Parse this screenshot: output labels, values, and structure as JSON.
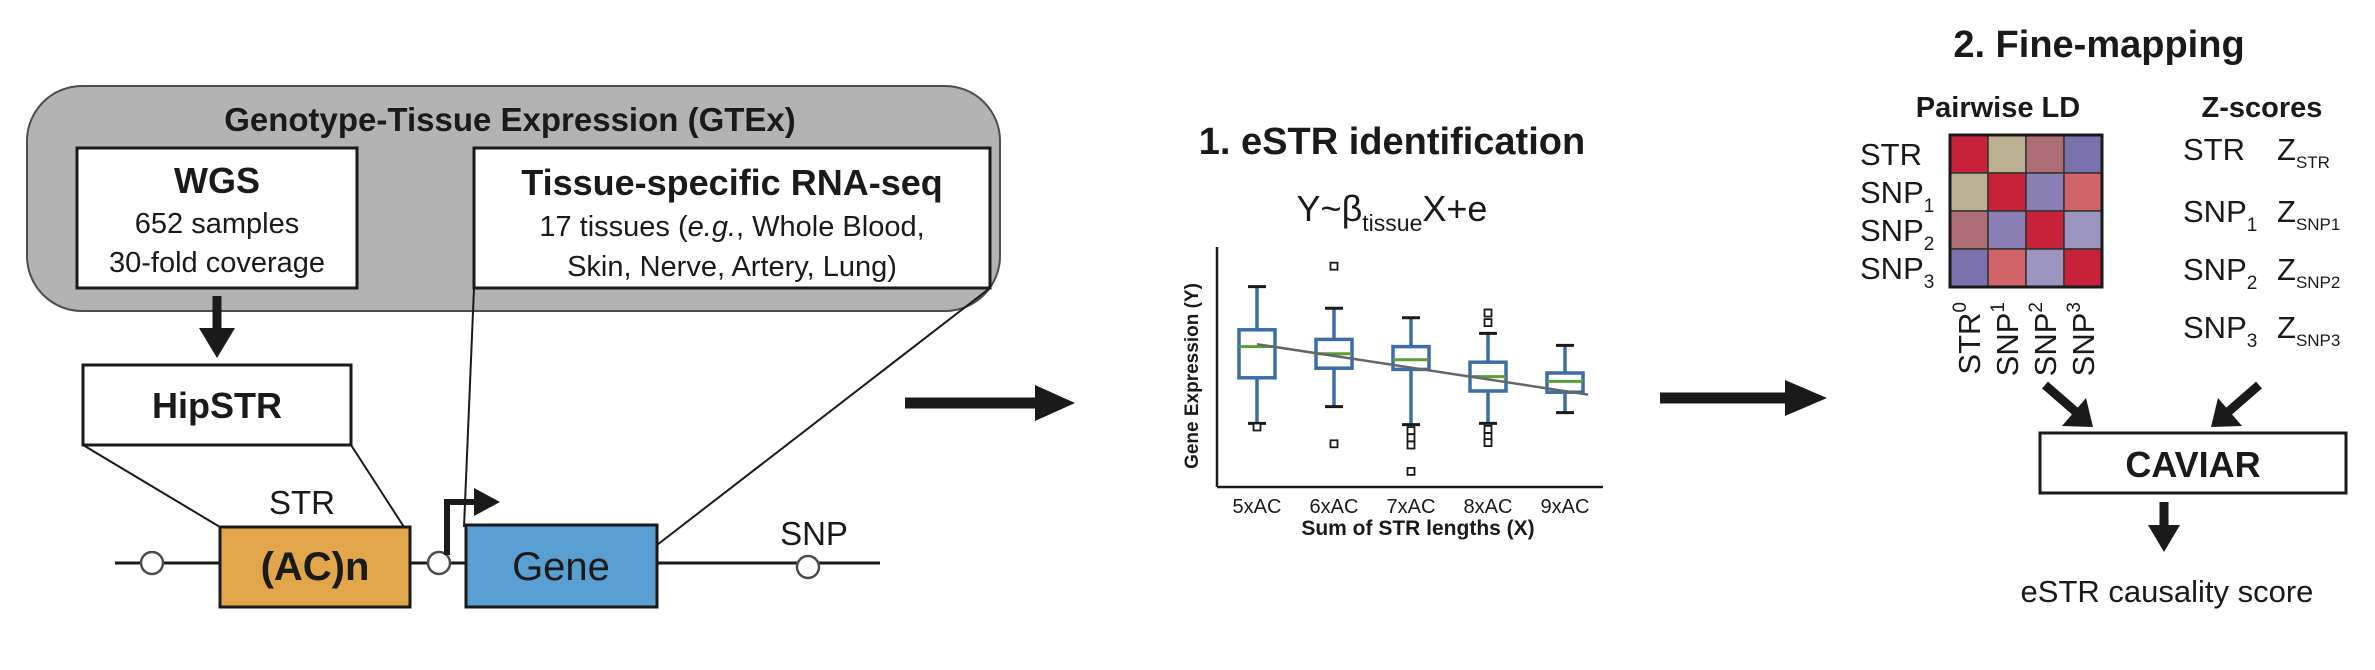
{
  "gtex": {
    "title": "Genotype-Tissue Expression (GTEx)",
    "wgs": {
      "title": "WGS",
      "line1": "652 samples",
      "line2": "30-fold coverage"
    },
    "rnaseq": {
      "title": "Tissue-specific RNA-seq",
      "line1_prefix": "17 tissues (",
      "line1_italic": "e.g.",
      "line1_suffix": ", Whole Blood,",
      "line2": "Skin, Nerve, Artery, Lung)"
    }
  },
  "hipstr": {
    "label": "HipSTR"
  },
  "locus": {
    "str_label": "STR",
    "str_box": "(AC)n",
    "gene_box": "Gene",
    "snp_label": "SNP"
  },
  "colors": {
    "gtex_bg": "#b3b3b3",
    "str_box": "#e2a64a",
    "gene_box": "#5a9fd2",
    "box_stroke": "#3a6ea5",
    "median": "#5a9e3a"
  },
  "estr": {
    "title": "1. eSTR identification",
    "formula": {
      "y": "Y~β",
      "sub": "tissue",
      "rest": "X+e"
    },
    "chart_data": {
      "type": "box",
      "categories": [
        "5xAC",
        "6xAC",
        "7xAC",
        "8xAC",
        "9xAC"
      ],
      "xlabel": "Sum of STR lengths (X)",
      "ylabel": "Gene Expression (Y)",
      "ylim": [
        0,
        10
      ],
      "boxes": [
        {
          "whisker_low": 2.65,
          "q1": 4.55,
          "median": 5.85,
          "q3": 6.55,
          "whisker_high": 8.35,
          "outliers": [
            2.5
          ]
        },
        {
          "whisker_low": 3.35,
          "q1": 4.95,
          "median": 5.55,
          "q3": 6.15,
          "whisker_high": 7.45,
          "outliers": [
            9.2,
            1.8
          ]
        },
        {
          "whisker_low": 2.6,
          "q1": 4.9,
          "median": 5.3,
          "q3": 5.85,
          "whisker_high": 7.05,
          "outliers": [
            2.35,
            2.05,
            1.75,
            0.65
          ]
        },
        {
          "whisker_low": 2.65,
          "q1": 4.0,
          "median": 4.6,
          "q3": 5.2,
          "whisker_high": 6.4,
          "outliers": [
            7.25,
            6.85,
            2.4,
            2.1,
            1.85
          ]
        },
        {
          "whisker_low": 3.1,
          "q1": 3.95,
          "median": 4.4,
          "q3": 4.75,
          "whisker_high": 5.9,
          "outliers": []
        }
      ],
      "trend": {
        "from": [
          0.3,
          5.95
        ],
        "to": [
          4.6,
          3.85
        ]
      }
    }
  },
  "finemap": {
    "title": "2. Fine-mapping",
    "ld": {
      "title": "Pairwise LD",
      "rows": [
        {
          "name": "STR",
          "sub": ""
        },
        {
          "name": "SNP",
          "sub": "1"
        },
        {
          "name": "SNP",
          "sub": "2"
        },
        {
          "name": "SNP",
          "sub": "3"
        }
      ],
      "cols": [
        {
          "name": "STR",
          "sub": "0"
        },
        {
          "name": "SNP",
          "sub": "1"
        },
        {
          "name": "SNP",
          "sub": "2"
        },
        {
          "name": "SNP",
          "sub": "3"
        }
      ],
      "cells": [
        [
          "#c8223a",
          "#bcb092",
          "#ad6d74",
          "#7b71ad"
        ],
        [
          "#bcb092",
          "#c8223a",
          "#8b7eb5",
          "#d06468"
        ],
        [
          "#ad6d74",
          "#8b7eb5",
          "#c8223a",
          "#9a94be"
        ],
        [
          "#7b71ad",
          "#d06468",
          "#9a94be",
          "#c8223a"
        ]
      ]
    },
    "zscores": {
      "title": "Z-scores",
      "rows": [
        {
          "name": "STR",
          "name_sub": "",
          "z": "Z",
          "z_sub": "STR"
        },
        {
          "name": "SNP",
          "name_sub": "1",
          "z": "Z",
          "z_sub": "SNP1"
        },
        {
          "name": "SNP",
          "name_sub": "2",
          "z": "Z",
          "z_sub": "SNP2"
        },
        {
          "name": "SNP",
          "name_sub": "3",
          "z": "Z",
          "z_sub": "SNP3"
        }
      ]
    },
    "caviar": {
      "label": "CAVIAR"
    },
    "output": "eSTR causality score"
  }
}
